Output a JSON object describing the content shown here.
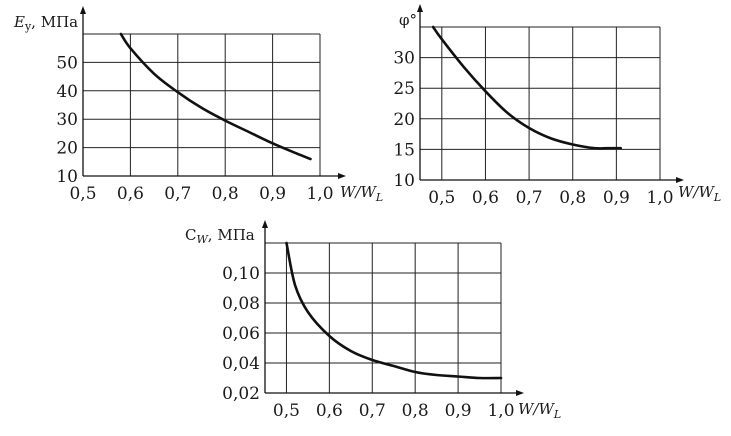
{
  "chart_data": [
    {
      "type": "line",
      "title": "",
      "ylabel": "E_y, МПа",
      "ylabel_symbol": "E",
      "ylabel_sub": "y",
      "ylabel_unit": ", МПа",
      "xlabel": "W/W_L",
      "xlabel_main": "W/W",
      "xlabel_sub": "L",
      "xlim": [
        0.5,
        1.0
      ],
      "ylim": [
        10,
        60
      ],
      "grid": true,
      "x_ticks": [
        "0,5",
        "0,6",
        "0,7",
        "0,8",
        "0,9",
        "1,0"
      ],
      "y_ticks": [
        "10",
        "20",
        "30",
        "40",
        "50"
      ],
      "series": [
        {
          "x": [
            0.58,
            0.6,
            0.65,
            0.7,
            0.75,
            0.8,
            0.85,
            0.9,
            0.95,
            0.98
          ],
          "y": [
            60,
            55,
            46,
            39.5,
            34,
            29.5,
            25.5,
            21.5,
            18,
            16
          ]
        }
      ]
    },
    {
      "type": "line",
      "title": "",
      "ylabel": "φ°",
      "xlabel": "W/W_L",
      "xlabel_main": "W/W",
      "xlabel_sub": "L",
      "xlim": [
        0.45,
        1.0
      ],
      "ylim": [
        10,
        35
      ],
      "grid": true,
      "x_ticks": [
        "0,5",
        "0,6",
        "0,7",
        "0,8",
        "0,9",
        "1,0"
      ],
      "y_ticks": [
        "10",
        "15",
        "20",
        "25",
        "30"
      ],
      "series": [
        {
          "x": [
            0.48,
            0.5,
            0.55,
            0.6,
            0.65,
            0.7,
            0.75,
            0.8,
            0.85,
            0.88,
            0.91
          ],
          "y": [
            35,
            33,
            28.5,
            24.5,
            21,
            18.5,
            16.8,
            15.8,
            15.2,
            15.2,
            15.2
          ]
        }
      ]
    },
    {
      "type": "line",
      "title": "",
      "ylabel": "C_W, МПа",
      "ylabel_symbol": "C",
      "ylabel_sub": "W",
      "ylabel_unit": ", МПа",
      "xlabel": "W/W_L",
      "xlabel_main": "W/W",
      "xlabel_sub": "L",
      "xlim": [
        0.45,
        1.0
      ],
      "ylim": [
        0.02,
        0.12
      ],
      "grid": true,
      "x_ticks": [
        "0,5",
        "0,6",
        "0,7",
        "0,8",
        "0,9",
        "1,0"
      ],
      "y_ticks": [
        "0,02",
        "0,04",
        "0,06",
        "0,08",
        "0,10"
      ],
      "series": [
        {
          "x": [
            0.5,
            0.52,
            0.55,
            0.6,
            0.65,
            0.7,
            0.75,
            0.8,
            0.85,
            0.9,
            0.95,
            1.0
          ],
          "y": [
            0.12,
            0.092,
            0.074,
            0.058,
            0.048,
            0.042,
            0.038,
            0.034,
            0.032,
            0.031,
            0.03,
            0.03
          ]
        }
      ]
    }
  ]
}
